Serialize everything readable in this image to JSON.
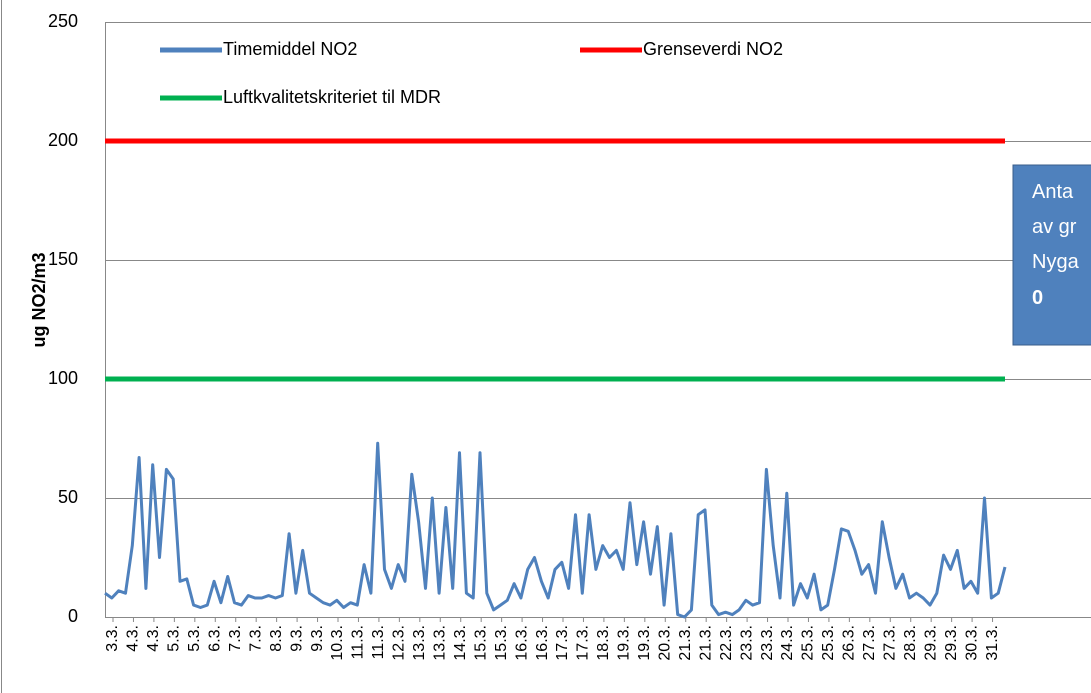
{
  "chart_data": {
    "type": "line",
    "y_label": "ug NO2/m3",
    "xlim": [
      0,
      132
    ],
    "ylim": [
      0,
      250
    ],
    "yticks": [
      0,
      50,
      100,
      150,
      200,
      250
    ],
    "grid": true,
    "xticks": [
      {
        "value": 0,
        "label": "3.3."
      },
      {
        "value": 3,
        "label": "4.3."
      },
      {
        "value": 6,
        "label": "4.3."
      },
      {
        "value": 9,
        "label": "5.3."
      },
      {
        "value": 12,
        "label": "5.3."
      },
      {
        "value": 15,
        "label": "6.3."
      },
      {
        "value": 18,
        "label": "7.3."
      },
      {
        "value": 21,
        "label": "7.3."
      },
      {
        "value": 24,
        "label": "8.3."
      },
      {
        "value": 27,
        "label": "9.3."
      },
      {
        "value": 30,
        "label": "9.3."
      },
      {
        "value": 33,
        "label": "10.3."
      },
      {
        "value": 36,
        "label": "11.3."
      },
      {
        "value": 39,
        "label": "11.3."
      },
      {
        "value": 42,
        "label": "12.3."
      },
      {
        "value": 45,
        "label": "13.3."
      },
      {
        "value": 48,
        "label": "13.3."
      },
      {
        "value": 51,
        "label": "14.3."
      },
      {
        "value": 54,
        "label": "15.3."
      },
      {
        "value": 57,
        "label": "15.3."
      },
      {
        "value": 60,
        "label": "16.3."
      },
      {
        "value": 63,
        "label": "16.3."
      },
      {
        "value": 66,
        "label": "17.3."
      },
      {
        "value": 69,
        "label": "17.3."
      },
      {
        "value": 72,
        "label": "18.3."
      },
      {
        "value": 75,
        "label": "19.3."
      },
      {
        "value": 78,
        "label": "19.3."
      },
      {
        "value": 81,
        "label": "20.3."
      },
      {
        "value": 84,
        "label": "21.3."
      },
      {
        "value": 87,
        "label": "21.3."
      },
      {
        "value": 90,
        "label": "22.3."
      },
      {
        "value": 93,
        "label": "23.3."
      },
      {
        "value": 96,
        "label": "23.3."
      },
      {
        "value": 99,
        "label": "24.3."
      },
      {
        "value": 102,
        "label": "25.3."
      },
      {
        "value": 105,
        "label": "25.3."
      },
      {
        "value": 108,
        "label": "26.3."
      },
      {
        "value": 111,
        "label": "27.3."
      },
      {
        "value": 114,
        "label": "27.3."
      },
      {
        "value": 117,
        "label": "28.3."
      },
      {
        "value": 120,
        "label": "29.3."
      },
      {
        "value": 123,
        "label": "29.3."
      },
      {
        "value": 126,
        "label": "30.3."
      },
      {
        "value": 129,
        "label": "31.3."
      }
    ],
    "series": [
      {
        "name": "Timemiddel NO2",
        "color": "#4f81bd",
        "values": [
          10,
          8,
          11,
          10,
          30,
          67,
          12,
          64,
          25,
          62,
          58,
          15,
          16,
          5,
          4,
          5,
          15,
          6,
          17,
          6,
          5,
          9,
          8,
          8,
          9,
          8,
          9,
          35,
          10,
          28,
          10,
          8,
          6,
          5,
          7,
          4,
          6,
          5,
          22,
          10,
          73,
          20,
          12,
          22,
          15,
          60,
          40,
          12,
          50,
          10,
          46,
          12,
          69,
          10,
          8,
          69,
          10,
          3,
          5,
          7,
          14,
          8,
          20,
          25,
          15,
          8,
          20,
          23,
          12,
          43,
          10,
          43,
          20,
          30,
          25,
          28,
          20,
          48,
          22,
          40,
          18,
          38,
          5,
          35,
          1,
          0,
          3,
          43,
          45,
          5,
          1,
          2,
          1,
          3,
          7,
          5,
          6,
          62,
          30,
          8,
          52,
          5,
          14,
          8,
          18,
          3,
          5,
          20,
          37,
          36,
          28,
          18,
          22,
          10,
          40,
          25,
          12,
          18,
          8,
          10,
          8,
          5,
          10,
          26,
          20,
          28,
          12,
          15,
          10,
          50,
          8,
          10,
          21
        ]
      },
      {
        "name": "Grenseverdi NO2",
        "color": "#ff0000",
        "x": [
          0,
          132
        ],
        "values": [
          200,
          200
        ]
      },
      {
        "name": "Luftkvalitetskriteriet til MDR",
        "color": "#00b050",
        "x": [
          0,
          132
        ],
        "values": [
          100,
          100
        ]
      }
    ],
    "annotation": [
      "Anta",
      "av gr",
      "Nyga",
      "0"
    ]
  }
}
